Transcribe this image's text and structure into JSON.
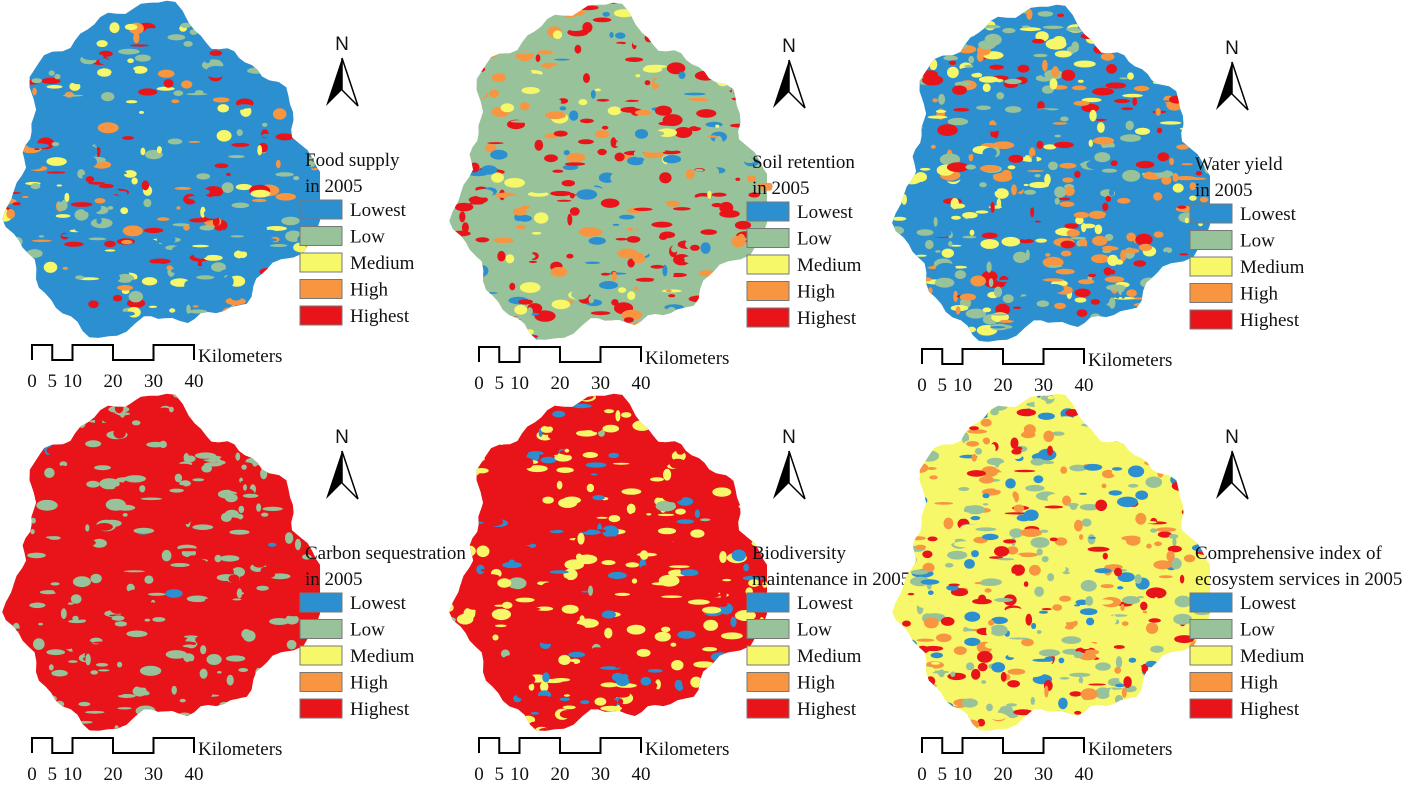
{
  "panels": [
    {
      "title": [
        "Food supply",
        "in 2005"
      ],
      "north": "N",
      "legend": [
        {
          "label": "Lowest",
          "color": "#2b8fd0"
        },
        {
          "label": "Low",
          "color": "#98c39a"
        },
        {
          "label": "Medium",
          "color": "#f7f76a"
        },
        {
          "label": "High",
          "color": "#f79540"
        },
        {
          "label": "Highest",
          "color": "#e8141a"
        }
      ],
      "scale": {
        "unit": "Kilometers",
        "ticks": [
          0,
          5,
          10,
          20,
          30,
          40
        ]
      }
    },
    {
      "title": [
        "Soil retention",
        "in 2005"
      ],
      "north": "N",
      "legend": [
        {
          "label": "Lowest",
          "color": "#2b8fd0"
        },
        {
          "label": "Low",
          "color": "#98c39a"
        },
        {
          "label": "Medium",
          "color": "#f7f76a"
        },
        {
          "label": "High",
          "color": "#f79540"
        },
        {
          "label": "Highest",
          "color": "#e8141a"
        }
      ],
      "scale": {
        "unit": "Kilometers",
        "ticks": [
          0,
          5,
          10,
          20,
          30,
          40
        ]
      }
    },
    {
      "title": [
        "Water yield",
        "in 2005"
      ],
      "north": "N",
      "legend": [
        {
          "label": "Lowest",
          "color": "#2b8fd0"
        },
        {
          "label": "Low",
          "color": "#98c39a"
        },
        {
          "label": "Medium",
          "color": "#f7f76a"
        },
        {
          "label": "High",
          "color": "#f79540"
        },
        {
          "label": "Highest",
          "color": "#e8141a"
        }
      ],
      "scale": {
        "unit": "Kilometers",
        "ticks": [
          0,
          5,
          10,
          20,
          30,
          40
        ]
      }
    },
    {
      "title": [
        "Carbon sequestration",
        "in 2005"
      ],
      "north": "N",
      "legend": [
        {
          "label": "Lowest",
          "color": "#2b8fd0"
        },
        {
          "label": "Low",
          "color": "#98c39a"
        },
        {
          "label": "Medium",
          "color": "#f7f76a"
        },
        {
          "label": "High",
          "color": "#f79540"
        },
        {
          "label": "Highest",
          "color": "#e8141a"
        }
      ],
      "scale": {
        "unit": "Kilometers",
        "ticks": [
          0,
          5,
          10,
          20,
          30,
          40
        ]
      }
    },
    {
      "title": [
        "Biodiversity",
        "maintenance in 2005"
      ],
      "north": "N",
      "legend": [
        {
          "label": "Lowest",
          "color": "#2b8fd0"
        },
        {
          "label": "Low",
          "color": "#98c39a"
        },
        {
          "label": "Medium",
          "color": "#f7f76a"
        },
        {
          "label": "High",
          "color": "#f79540"
        },
        {
          "label": "Highest",
          "color": "#e8141a"
        }
      ],
      "scale": {
        "unit": "Kilometers",
        "ticks": [
          0,
          5,
          10,
          20,
          30,
          40
        ]
      }
    },
    {
      "title": [
        "Comprehensive index of",
        "ecosystem services in 2005"
      ],
      "north": "N",
      "legend": [
        {
          "label": "Lowest",
          "color": "#2b8fd0"
        },
        {
          "label": "Low",
          "color": "#98c39a"
        },
        {
          "label": "Medium",
          "color": "#f7f76a"
        },
        {
          "label": "High",
          "color": "#f79540"
        },
        {
          "label": "Highest",
          "color": "#e8141a"
        }
      ],
      "scale": {
        "unit": "Kilometers",
        "ticks": [
          0,
          5,
          10,
          20,
          30,
          40
        ]
      }
    }
  ]
}
